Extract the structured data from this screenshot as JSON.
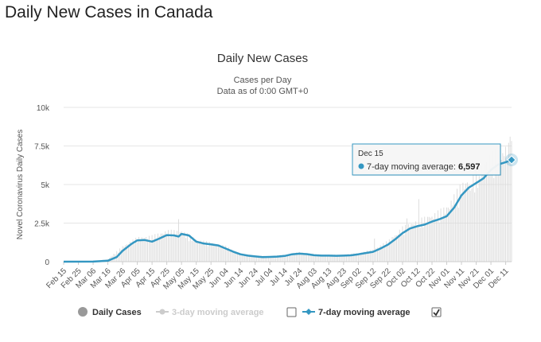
{
  "page": {
    "heading": "Daily New Cases in Canada"
  },
  "colors": {
    "line": "#3497c2",
    "bar": "#d9d9d9",
    "grid": "#e6e6e6",
    "legend_disabled": "#cccccc"
  },
  "chart_data": {
    "type": "line",
    "title": "Daily New Cases",
    "subtitle_lines": [
      "Cases per Day",
      "Data as of 0:00 GMT+0"
    ],
    "ylabel": "Novel Coronavirus Daily Cases",
    "ylim": [
      0,
      10000
    ],
    "y_ticks": [
      0,
      2500,
      5000,
      7500,
      10000
    ],
    "y_tick_labels": [
      "0",
      "2.5k",
      "5k",
      "7.5k",
      "10k"
    ],
    "grid": true,
    "x_start": "2020-02-15",
    "x_end": "2020-12-15",
    "x_tick_labels": [
      "Feb 15",
      "Feb 25",
      "Mar 06",
      "Mar 16",
      "Mar 26",
      "Apr 05",
      "Apr 15",
      "Apr 25",
      "May 05",
      "May 15",
      "May 25",
      "Jun 04",
      "Jun 14",
      "Jun 24",
      "Jul 04",
      "Jul 14",
      "Jul 24",
      "Aug 03",
      "Aug 13",
      "Aug 23",
      "Sep 02",
      "Sep 12",
      "Sep 22",
      "Oct 02",
      "Oct 12",
      "Oct 22",
      "Nov 01",
      "Nov 11",
      "Nov 21",
      "Dec 01",
      "Dec 11"
    ],
    "series": [
      {
        "name": "7-day moving average",
        "visible": true,
        "points": [
          [
            "2020-02-15",
            0
          ],
          [
            "2020-03-06",
            5
          ],
          [
            "2020-03-16",
            60
          ],
          [
            "2020-03-22",
            300
          ],
          [
            "2020-03-26",
            700
          ],
          [
            "2020-04-01",
            1150
          ],
          [
            "2020-04-05",
            1380
          ],
          [
            "2020-04-10",
            1400
          ],
          [
            "2020-04-15",
            1300
          ],
          [
            "2020-04-20",
            1500
          ],
          [
            "2020-04-25",
            1720
          ],
          [
            "2020-04-30",
            1700
          ],
          [
            "2020-05-03",
            1630
          ],
          [
            "2020-05-05",
            1800
          ],
          [
            "2020-05-10",
            1700
          ],
          [
            "2020-05-15",
            1300
          ],
          [
            "2020-05-20",
            1180
          ],
          [
            "2020-05-25",
            1120
          ],
          [
            "2020-05-30",
            1050
          ],
          [
            "2020-06-04",
            850
          ],
          [
            "2020-06-09",
            650
          ],
          [
            "2020-06-14",
            480
          ],
          [
            "2020-06-19",
            390
          ],
          [
            "2020-06-24",
            340
          ],
          [
            "2020-06-29",
            300
          ],
          [
            "2020-07-04",
            310
          ],
          [
            "2020-07-09",
            330
          ],
          [
            "2020-07-14",
            370
          ],
          [
            "2020-07-19",
            480
          ],
          [
            "2020-07-24",
            520
          ],
          [
            "2020-07-29",
            490
          ],
          [
            "2020-08-03",
            420
          ],
          [
            "2020-08-08",
            390
          ],
          [
            "2020-08-13",
            390
          ],
          [
            "2020-08-18",
            380
          ],
          [
            "2020-08-23",
            390
          ],
          [
            "2020-08-28",
            410
          ],
          [
            "2020-09-02",
            480
          ],
          [
            "2020-09-07",
            560
          ],
          [
            "2020-09-12",
            640
          ],
          [
            "2020-09-17",
            850
          ],
          [
            "2020-09-22",
            1100
          ],
          [
            "2020-09-27",
            1450
          ],
          [
            "2020-10-02",
            1850
          ],
          [
            "2020-10-07",
            2150
          ],
          [
            "2020-10-12",
            2300
          ],
          [
            "2020-10-17",
            2400
          ],
          [
            "2020-10-22",
            2600
          ],
          [
            "2020-10-27",
            2750
          ],
          [
            "2020-11-01",
            2950
          ],
          [
            "2020-11-06",
            3500
          ],
          [
            "2020-11-11",
            4300
          ],
          [
            "2020-11-16",
            4800
          ],
          [
            "2020-11-21",
            5100
          ],
          [
            "2020-11-26",
            5400
          ],
          [
            "2020-12-01",
            5950
          ],
          [
            "2020-12-06",
            6300
          ],
          [
            "2020-12-11",
            6450
          ],
          [
            "2020-12-15",
            6597
          ]
        ]
      }
    ],
    "bars": {
      "name": "Daily Cases",
      "anchors": [
        [
          "2020-02-15",
          0
        ],
        [
          "2020-03-06",
          10
        ],
        [
          "2020-03-16",
          150
        ],
        [
          "2020-03-26",
          900
        ],
        [
          "2020-04-05",
          1400
        ],
        [
          "2020-04-15",
          1500
        ],
        [
          "2020-04-25",
          1800
        ],
        [
          "2020-05-05",
          1800
        ],
        [
          "2020-05-15",
          1300
        ],
        [
          "2020-05-25",
          1100
        ],
        [
          "2020-06-04",
          900
        ],
        [
          "2020-06-14",
          450
        ],
        [
          "2020-06-24",
          350
        ],
        [
          "2020-07-04",
          320
        ],
        [
          "2020-07-14",
          400
        ],
        [
          "2020-07-24",
          550
        ],
        [
          "2020-08-03",
          430
        ],
        [
          "2020-08-13",
          400
        ],
        [
          "2020-08-23",
          400
        ],
        [
          "2020-09-02",
          500
        ],
        [
          "2020-09-12",
          700
        ],
        [
          "2020-09-22",
          1200
        ],
        [
          "2020-10-02",
          2000
        ],
        [
          "2020-10-12",
          2400
        ],
        [
          "2020-10-22",
          2700
        ],
        [
          "2020-11-01",
          3200
        ],
        [
          "2020-11-11",
          4500
        ],
        [
          "2020-11-21",
          5200
        ],
        [
          "2020-12-01",
          6200
        ],
        [
          "2020-12-11",
          6700
        ],
        [
          "2020-12-15",
          6800
        ]
      ],
      "spikes": [
        [
          "2020-05-03",
          2760
        ],
        [
          "2020-09-13",
          1500
        ],
        [
          "2020-09-28",
          1700
        ],
        [
          "2020-10-05",
          2800
        ],
        [
          "2020-10-13",
          4050
        ],
        [
          "2020-10-20",
          2900
        ],
        [
          "2020-11-03",
          3400
        ],
        [
          "2020-11-09",
          3500
        ],
        [
          "2020-11-17",
          4600
        ],
        [
          "2020-11-23",
          5550
        ],
        [
          "2020-11-27",
          6300
        ],
        [
          "2020-12-08",
          6600
        ],
        [
          "2020-12-14",
          8100
        ]
      ]
    },
    "legend": [
      {
        "label": "Daily Cases",
        "marker": "circle",
        "enabled": true,
        "checkbox": false
      },
      {
        "label": "3-day moving average",
        "marker": "line-circle",
        "enabled": false,
        "checkbox": "unchecked"
      },
      {
        "label": "7-day moving average",
        "marker": "line-diamond",
        "enabled": true,
        "checkbox": "checked"
      }
    ],
    "tooltip": {
      "date": "Dec 15",
      "series": "7-day moving average",
      "label": "7-day moving average: ",
      "value": "6,597"
    }
  }
}
